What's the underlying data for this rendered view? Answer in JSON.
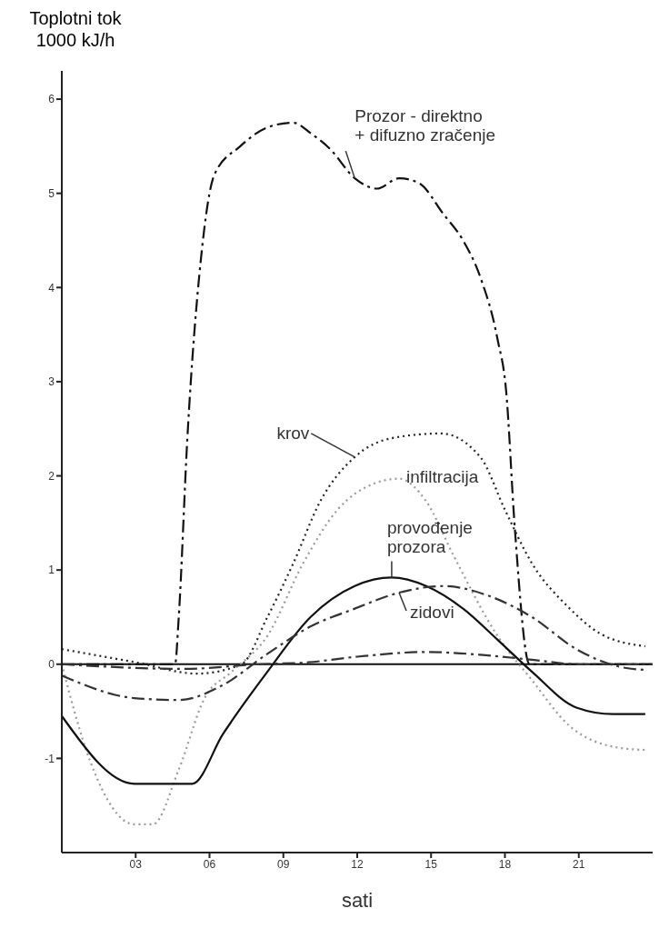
{
  "chart_data": {
    "type": "line",
    "ylabel": "Toplotni tok 1000 kJ/h",
    "xlabel": "sati",
    "xlim": [
      0,
      24
    ],
    "xticks": [
      {
        "value": 3,
        "label": "03"
      },
      {
        "value": 6,
        "label": "06"
      },
      {
        "value": 9,
        "label": "09"
      },
      {
        "value": 12,
        "label": "12"
      },
      {
        "value": 15,
        "label": "15"
      },
      {
        "value": 18,
        "label": "18"
      },
      {
        "value": 21,
        "label": "21"
      }
    ],
    "ylim": [
      -2,
      6.3
    ],
    "yticks": [
      -1,
      0,
      1,
      2,
      3,
      4,
      5,
      6
    ],
    "grid": false,
    "marker": "none",
    "ref_lines": [
      {
        "axis": "y",
        "value": 0,
        "color": "#111111"
      }
    ],
    "series": [
      {
        "name": "Prozor - direktno + difuzno zračenje",
        "color": "#111111",
        "line_style": "dashed",
        "x": [
          0,
          2,
          4.6,
          4.75,
          5.1,
          5.65,
          6.2,
          7.25,
          8.35,
          9.4,
          10.1,
          10.9,
          11.9,
          12.8,
          13.7,
          14.5,
          15.5,
          16.3,
          17,
          17.7,
          18.05,
          18.4,
          19,
          21,
          24
        ],
        "values": [
          0,
          0,
          0,
          0.5,
          2.4,
          4.3,
          5.2,
          5.5,
          5.7,
          5.75,
          5.64,
          5.47,
          5.16,
          5.05,
          5.16,
          5.11,
          4.78,
          4.5,
          4.11,
          3.45,
          2.9,
          1.45,
          0,
          0,
          0
        ]
      },
      {
        "name": "krov",
        "color": "#222222",
        "line_style": "dotted",
        "x": [
          0,
          3,
          5.5,
          7.3,
          8.35,
          9.4,
          10.5,
          11.9,
          13.4,
          15.4,
          17,
          18,
          19.1,
          20.6,
          21.9,
          23.7
        ],
        "values": [
          0.16,
          0.02,
          -0.1,
          0,
          0.5,
          1.07,
          1.73,
          2.2,
          2.4,
          2.45,
          2.2,
          1.64,
          1.07,
          0.6,
          0.32,
          0.19
        ]
      },
      {
        "name": "infiltracija",
        "color": "#999999",
        "line_style": "dotted",
        "x": [
          0,
          1.15,
          2.95,
          3.7,
          4.75,
          5.8,
          6.9,
          8.35,
          9.8,
          11.2,
          12.7,
          13.7,
          14.8,
          15.9,
          17.7,
          19.1,
          20.6,
          22.7,
          23.7
        ],
        "values": [
          0,
          -1.03,
          -1.7,
          -1.7,
          -1.12,
          -0.36,
          -0.08,
          0.3,
          1.07,
          1.64,
          1.92,
          1.97,
          1.73,
          1.16,
          0.3,
          -0.17,
          -0.65,
          -0.89,
          -0.91
        ]
      },
      {
        "name": "provođenje prozora",
        "color": "#111111",
        "line_style": "solid",
        "x": [
          0,
          2.95,
          5.3,
          6.55,
          8.35,
          10.1,
          11.9,
          13.4,
          14.8,
          16.3,
          17.7,
          19.1,
          20.9,
          22.4,
          23.7
        ],
        "values": [
          -0.55,
          -1.27,
          -1.27,
          -0.74,
          -0.08,
          0.5,
          0.83,
          0.92,
          0.83,
          0.59,
          0.26,
          -0.08,
          -0.46,
          -0.53,
          -0.53
        ]
      },
      {
        "name": "zidovi",
        "color": "#333333",
        "line_style": "dashed",
        "x": [
          0,
          2.95,
          4.75,
          6.55,
          8.35,
          10.1,
          11.9,
          13.7,
          15.5,
          17.3,
          19.1,
          20.9,
          22.7,
          23.7
        ],
        "values": [
          -0.12,
          -0.36,
          -0.38,
          -0.22,
          0.11,
          0.4,
          0.59,
          0.76,
          0.83,
          0.73,
          0.5,
          0.16,
          -0.03,
          -0.06
        ]
      },
      {
        "color": "#333333",
        "line_style": "dashed",
        "x": [
          0,
          5,
          8,
          10,
          12,
          14.8,
          17,
          19,
          21,
          24
        ],
        "values": [
          0,
          -0.05,
          0,
          0.02,
          0.08,
          0.13,
          0.1,
          0.05,
          0,
          0
        ]
      }
    ]
  }
}
